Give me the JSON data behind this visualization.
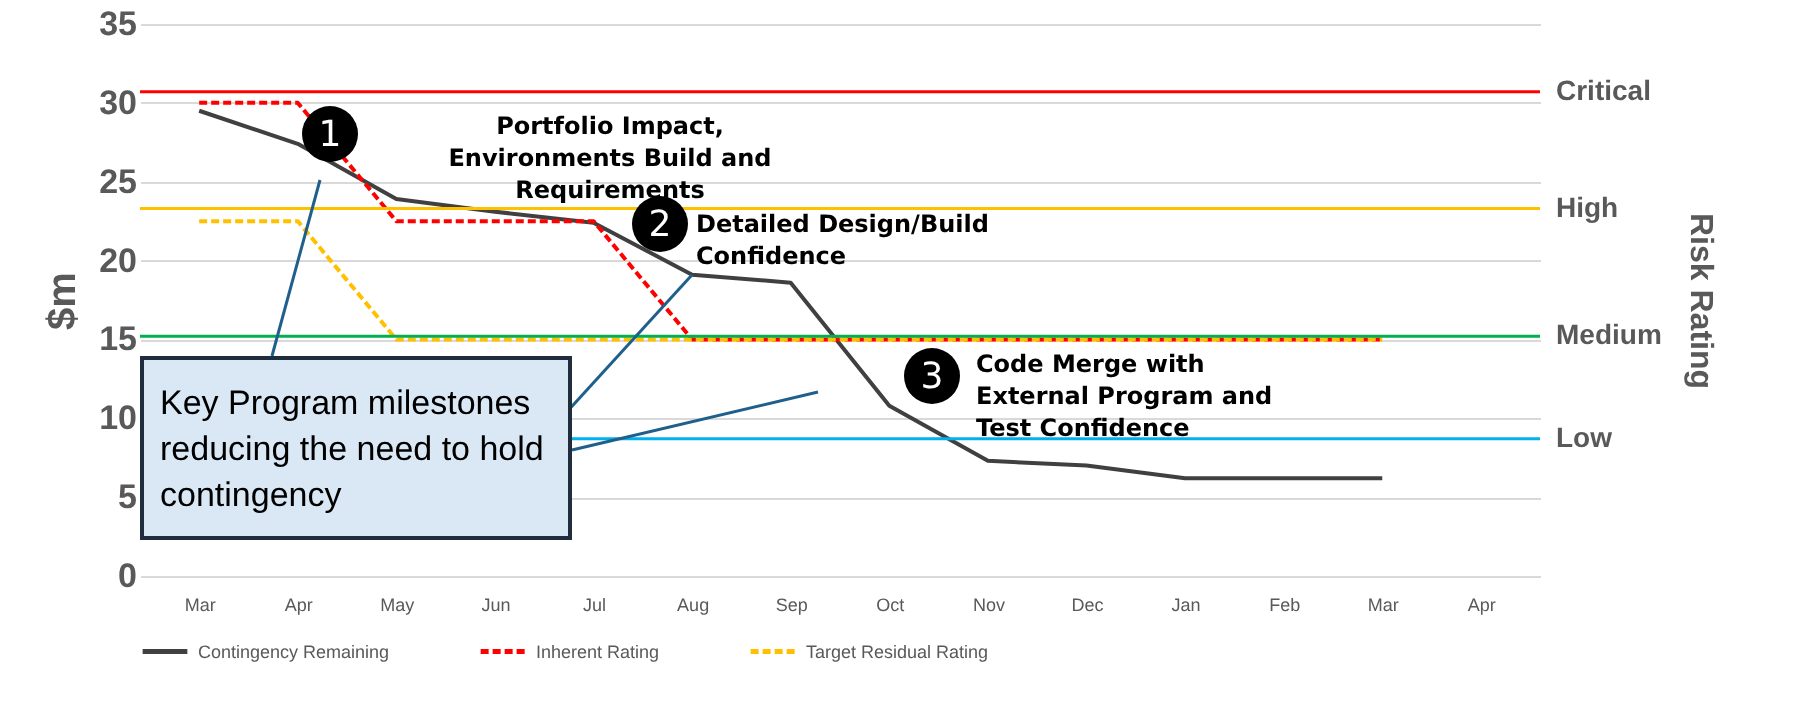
{
  "chart_data": {
    "type": "line",
    "ylabel": "$m",
    "y2label": "Risk Rating",
    "categories": [
      "Mar",
      "Apr",
      "May",
      "Jun",
      "Jul",
      "Aug",
      "Sep",
      "Oct",
      "Nov",
      "Dec",
      "Jan",
      "Feb",
      "Mar",
      "Apr"
    ],
    "series": [
      {
        "name": "Contingency Remaining",
        "color": "#404040",
        "line_style": "solid",
        "values": [
          29.5,
          27.4,
          23.9,
          23.1,
          22.4,
          19.1,
          18.6,
          10.8,
          7.3,
          7.0,
          6.2,
          6.2,
          6.2,
          null
        ]
      },
      {
        "name": "Inherent Rating",
        "color": "#ff0000",
        "line_style": "dashed",
        "values": [
          30,
          30,
          22.5,
          22.5,
          22.5,
          15,
          15,
          15,
          15,
          15,
          15,
          15,
          15,
          null
        ]
      },
      {
        "name": "Target Residual Rating",
        "color": "#ffc000",
        "line_style": "dashed",
        "values": [
          22.5,
          22.5,
          15,
          15,
          15,
          15,
          15,
          15,
          15,
          15,
          15,
          15,
          15,
          null
        ]
      }
    ],
    "ylim": [
      0,
      35
    ],
    "yticks": [
      0,
      5,
      10,
      15,
      20,
      25,
      30,
      35
    ],
    "grid": "y",
    "legend": "bottom",
    "ref_lines": [
      {
        "axis": "y",
        "value": 30.7,
        "label": "Critical",
        "color": "#ff0000"
      },
      {
        "axis": "y",
        "value": 23.3,
        "label": "High",
        "color": "#ffc000"
      },
      {
        "axis": "y",
        "value": 15.2,
        "label": "Medium",
        "color": "#00b050"
      },
      {
        "axis": "y",
        "value": 8.7,
        "label": "Low",
        "color": "#00b0f0"
      }
    ],
    "annotations": [
      "1",
      "Portfolio Impact, Environments Build and Requirements",
      "2",
      "Detailed Design/Build Confidence",
      "3",
      "Code Merge with External Program and Test Confidence",
      {
        "text": "Key Program milestones reducing the need to hold contingency",
        "x": "Aug",
        "y": 19.1
      }
    ]
  }
}
